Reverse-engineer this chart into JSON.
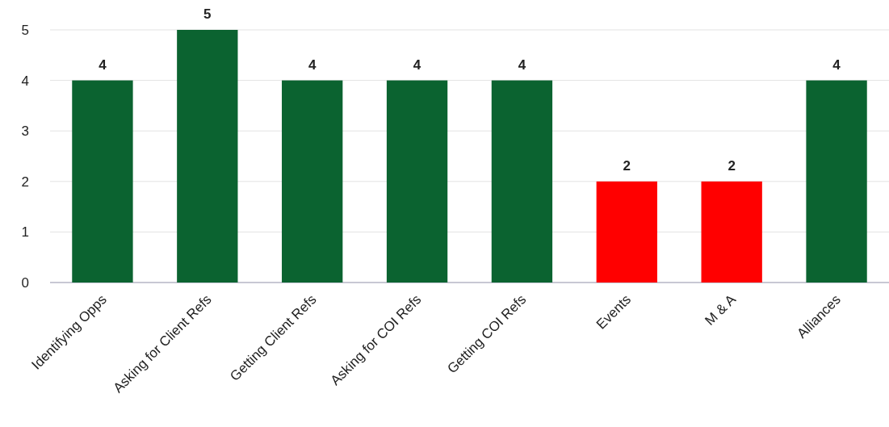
{
  "chart_data": {
    "type": "bar",
    "categories": [
      "Identifying Opps",
      "Asking for Client Refs",
      "Getting Client Refs",
      "Asking for COI Refs",
      "Getting COI Refs",
      "Events",
      "M & A",
      "Alliances"
    ],
    "values": [
      4,
      5,
      4,
      4,
      4,
      2,
      2,
      4
    ],
    "colors": [
      "#0b6330",
      "#0b6330",
      "#0b6330",
      "#0b6330",
      "#0b6330",
      "#ff0000",
      "#ff0000",
      "#0b6330"
    ],
    "ylim": [
      0,
      5
    ],
    "yticks": [
      0,
      1,
      2,
      3,
      4,
      5
    ],
    "grid": "y",
    "data_labels": true
  }
}
